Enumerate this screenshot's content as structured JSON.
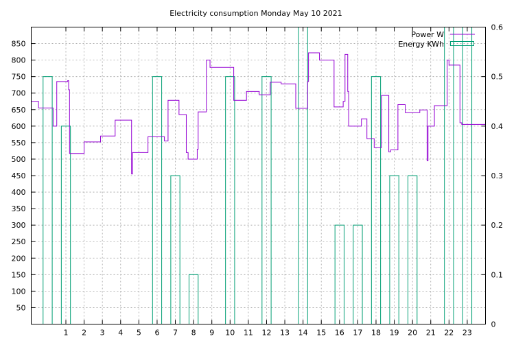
{
  "chart_data": {
    "type": "line",
    "title": "Electricity consumption Monday May 10 2021",
    "xlabel": "",
    "ylabel": "",
    "xlim": [
      -0.9,
      24.0
    ],
    "ylim": [
      0,
      900
    ],
    "y2lim": [
      0,
      0.6
    ],
    "x_ticks": [
      1,
      2,
      3,
      4,
      5,
      6,
      7,
      8,
      9,
      10,
      11,
      12,
      13,
      14,
      15,
      16,
      17,
      18,
      19,
      20,
      21,
      22,
      23
    ],
    "y_ticks": [
      50,
      100,
      150,
      200,
      250,
      300,
      350,
      400,
      450,
      500,
      550,
      600,
      650,
      700,
      750,
      800,
      850
    ],
    "y2_ticks": [
      "0",
      "0.1",
      "0.2",
      "0.3",
      "0.4",
      "0.5",
      "0.6"
    ],
    "grid": true,
    "legend_position": "top-right",
    "series": [
      {
        "name": "Power W",
        "axis": "y",
        "style": "steps",
        "color": "#9400d3",
        "points": [
          [
            -0.9,
            675
          ],
          [
            -0.5,
            675
          ],
          [
            -0.5,
            655
          ],
          [
            0.3,
            655
          ],
          [
            0.3,
            600
          ],
          [
            0.5,
            600
          ],
          [
            0.5,
            735
          ],
          [
            1.1,
            735
          ],
          [
            1.1,
            738
          ],
          [
            1.15,
            738
          ],
          [
            1.15,
            710
          ],
          [
            1.2,
            710
          ],
          [
            1.2,
            517
          ],
          [
            2.0,
            517
          ],
          [
            2.0,
            552
          ],
          [
            2.9,
            552
          ],
          [
            2.9,
            570
          ],
          [
            3.7,
            570
          ],
          [
            3.7,
            618
          ],
          [
            4.6,
            618
          ],
          [
            4.6,
            455
          ],
          [
            4.65,
            455
          ],
          [
            4.65,
            520
          ],
          [
            5.5,
            520
          ],
          [
            5.5,
            568
          ],
          [
            6.4,
            568
          ],
          [
            6.4,
            555
          ],
          [
            6.6,
            555
          ],
          [
            6.6,
            678
          ],
          [
            7.2,
            678
          ],
          [
            7.2,
            635
          ],
          [
            7.6,
            635
          ],
          [
            7.6,
            520
          ],
          [
            7.7,
            520
          ],
          [
            7.7,
            500
          ],
          [
            8.2,
            500
          ],
          [
            8.2,
            530
          ],
          [
            8.25,
            530
          ],
          [
            8.25,
            643
          ],
          [
            8.7,
            643
          ],
          [
            8.7,
            800
          ],
          [
            8.9,
            800
          ],
          [
            8.9,
            778
          ],
          [
            10.2,
            778
          ],
          [
            10.2,
            678
          ],
          [
            10.9,
            678
          ],
          [
            10.9,
            705
          ],
          [
            11.6,
            705
          ],
          [
            11.6,
            695
          ],
          [
            12.2,
            695
          ],
          [
            12.2,
            733
          ],
          [
            12.8,
            733
          ],
          [
            12.8,
            728
          ],
          [
            13.6,
            728
          ],
          [
            13.6,
            654
          ],
          [
            14.25,
            654
          ],
          [
            14.25,
            735
          ],
          [
            14.3,
            735
          ],
          [
            14.3,
            822
          ],
          [
            14.9,
            822
          ],
          [
            14.9,
            800
          ],
          [
            15.7,
            800
          ],
          [
            15.7,
            658
          ],
          [
            16.2,
            658
          ],
          [
            16.2,
            675
          ],
          [
            16.3,
            675
          ],
          [
            16.3,
            817
          ],
          [
            16.45,
            817
          ],
          [
            16.45,
            705
          ],
          [
            16.5,
            705
          ],
          [
            16.5,
            600
          ],
          [
            17.2,
            600
          ],
          [
            17.2,
            622
          ],
          [
            17.5,
            622
          ],
          [
            17.5,
            562
          ],
          [
            17.9,
            562
          ],
          [
            17.9,
            535
          ],
          [
            18.3,
            535
          ],
          [
            18.3,
            693
          ],
          [
            18.7,
            693
          ],
          [
            18.7,
            522
          ],
          [
            18.8,
            522
          ],
          [
            18.8,
            528
          ],
          [
            19.2,
            528
          ],
          [
            19.2,
            665
          ],
          [
            19.6,
            665
          ],
          [
            19.6,
            641
          ],
          [
            20.4,
            641
          ],
          [
            20.4,
            649
          ],
          [
            20.8,
            649
          ],
          [
            20.8,
            495
          ],
          [
            20.85,
            495
          ],
          [
            20.85,
            600
          ],
          [
            21.2,
            600
          ],
          [
            21.2,
            662
          ],
          [
            21.9,
            662
          ],
          [
            21.9,
            800
          ],
          [
            22.0,
            800
          ],
          [
            22.0,
            785
          ],
          [
            22.6,
            785
          ],
          [
            22.6,
            610
          ],
          [
            22.7,
            610
          ],
          [
            22.7,
            605
          ],
          [
            24.0,
            605
          ]
        ]
      },
      {
        "name": "Energy KWh",
        "axis": "y2",
        "style": "histeps",
        "color": "#009e73",
        "hours": [
          0,
          1,
          2,
          3,
          4,
          5,
          6,
          7,
          8,
          9,
          10,
          11,
          12,
          13,
          14,
          15,
          16,
          17,
          18,
          19,
          20,
          21,
          22,
          23
        ],
        "values": [
          0.5,
          0.4,
          0,
          0,
          0,
          0,
          0.5,
          0.3,
          0.1,
          0,
          0.5,
          0,
          0.5,
          0,
          0.6,
          0,
          0.2,
          0.2,
          0.5,
          0.3,
          0.3,
          0,
          0.6,
          0.6
        ]
      }
    ]
  }
}
